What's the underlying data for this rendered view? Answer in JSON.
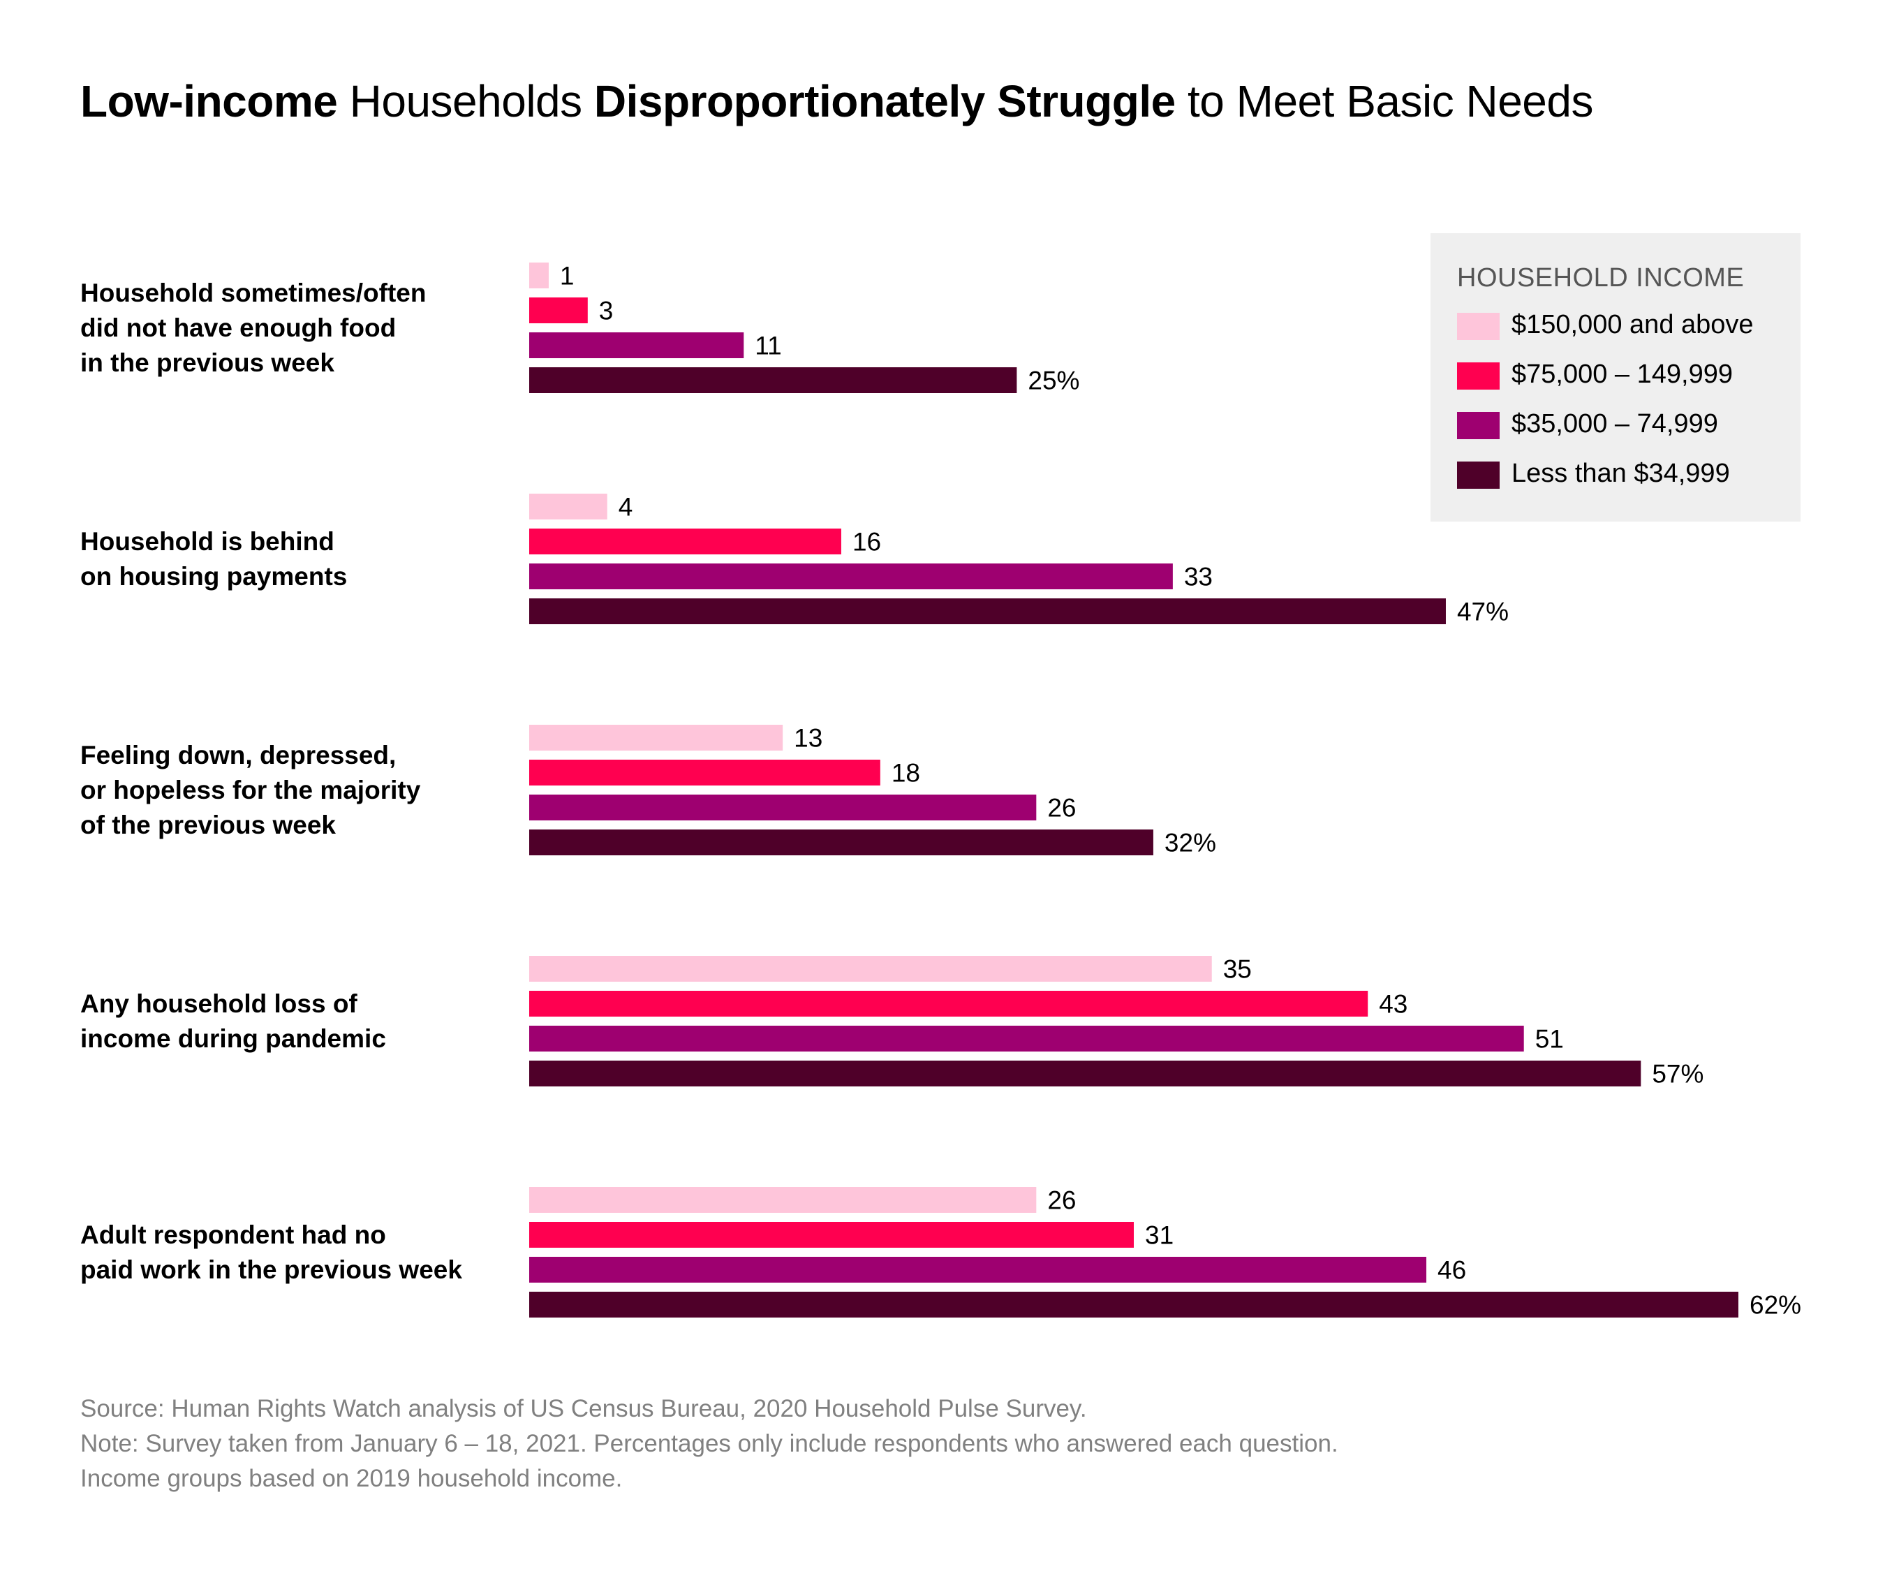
{
  "title": [
    {
      "text": "Low-income",
      "bold": true
    },
    {
      "text": " Households ",
      "bold": false
    },
    {
      "text": "Disproportionately Struggle",
      "bold": true
    },
    {
      "text": " to Meet Basic Needs",
      "bold": false
    }
  ],
  "chart_data": {
    "type": "bar",
    "orientation": "horizontal",
    "unit": "%",
    "categories": [
      [
        "Household sometimes/often",
        "did not have enough food",
        "in the previous week"
      ],
      [
        "Household is behind",
        "on housing payments"
      ],
      [
        "Feeling down, depressed,",
        "or hopeless for the majority",
        "of the previous week"
      ],
      [
        "Any household loss of",
        "income during pandemic"
      ],
      [
        "Adult respondent had no",
        "paid work in the previous week"
      ]
    ],
    "series": [
      {
        "name": "$150,000 and above",
        "color": "#fec5da",
        "values": [
          1,
          4,
          13,
          35,
          26
        ]
      },
      {
        "name": "$75,000 – 149,999",
        "color": "#ff0050",
        "values": [
          3,
          16,
          18,
          43,
          31
        ]
      },
      {
        "name": "$35,000 – 74,999",
        "color": "#9e0070",
        "values": [
          11,
          33,
          26,
          51,
          46
        ]
      },
      {
        "name": "Less than $34,999",
        "color": "#4f0029",
        "values": [
          25,
          47,
          32,
          57,
          62
        ]
      }
    ],
    "percent_suffix_on_series": 3,
    "legend": {
      "title": "HOUSEHOLD INCOME",
      "placement": "top-right"
    },
    "grid": false,
    "xlim": [
      0,
      62
    ]
  },
  "notes": [
    "Source: Human Rights Watch analysis of US Census Bureau, 2020 Household Pulse Survey.",
    "Note: Survey taken from January 6 – 18, 2021. Percentages only include respondents who answered each question.",
    "Income groups based on 2019 household income."
  ]
}
